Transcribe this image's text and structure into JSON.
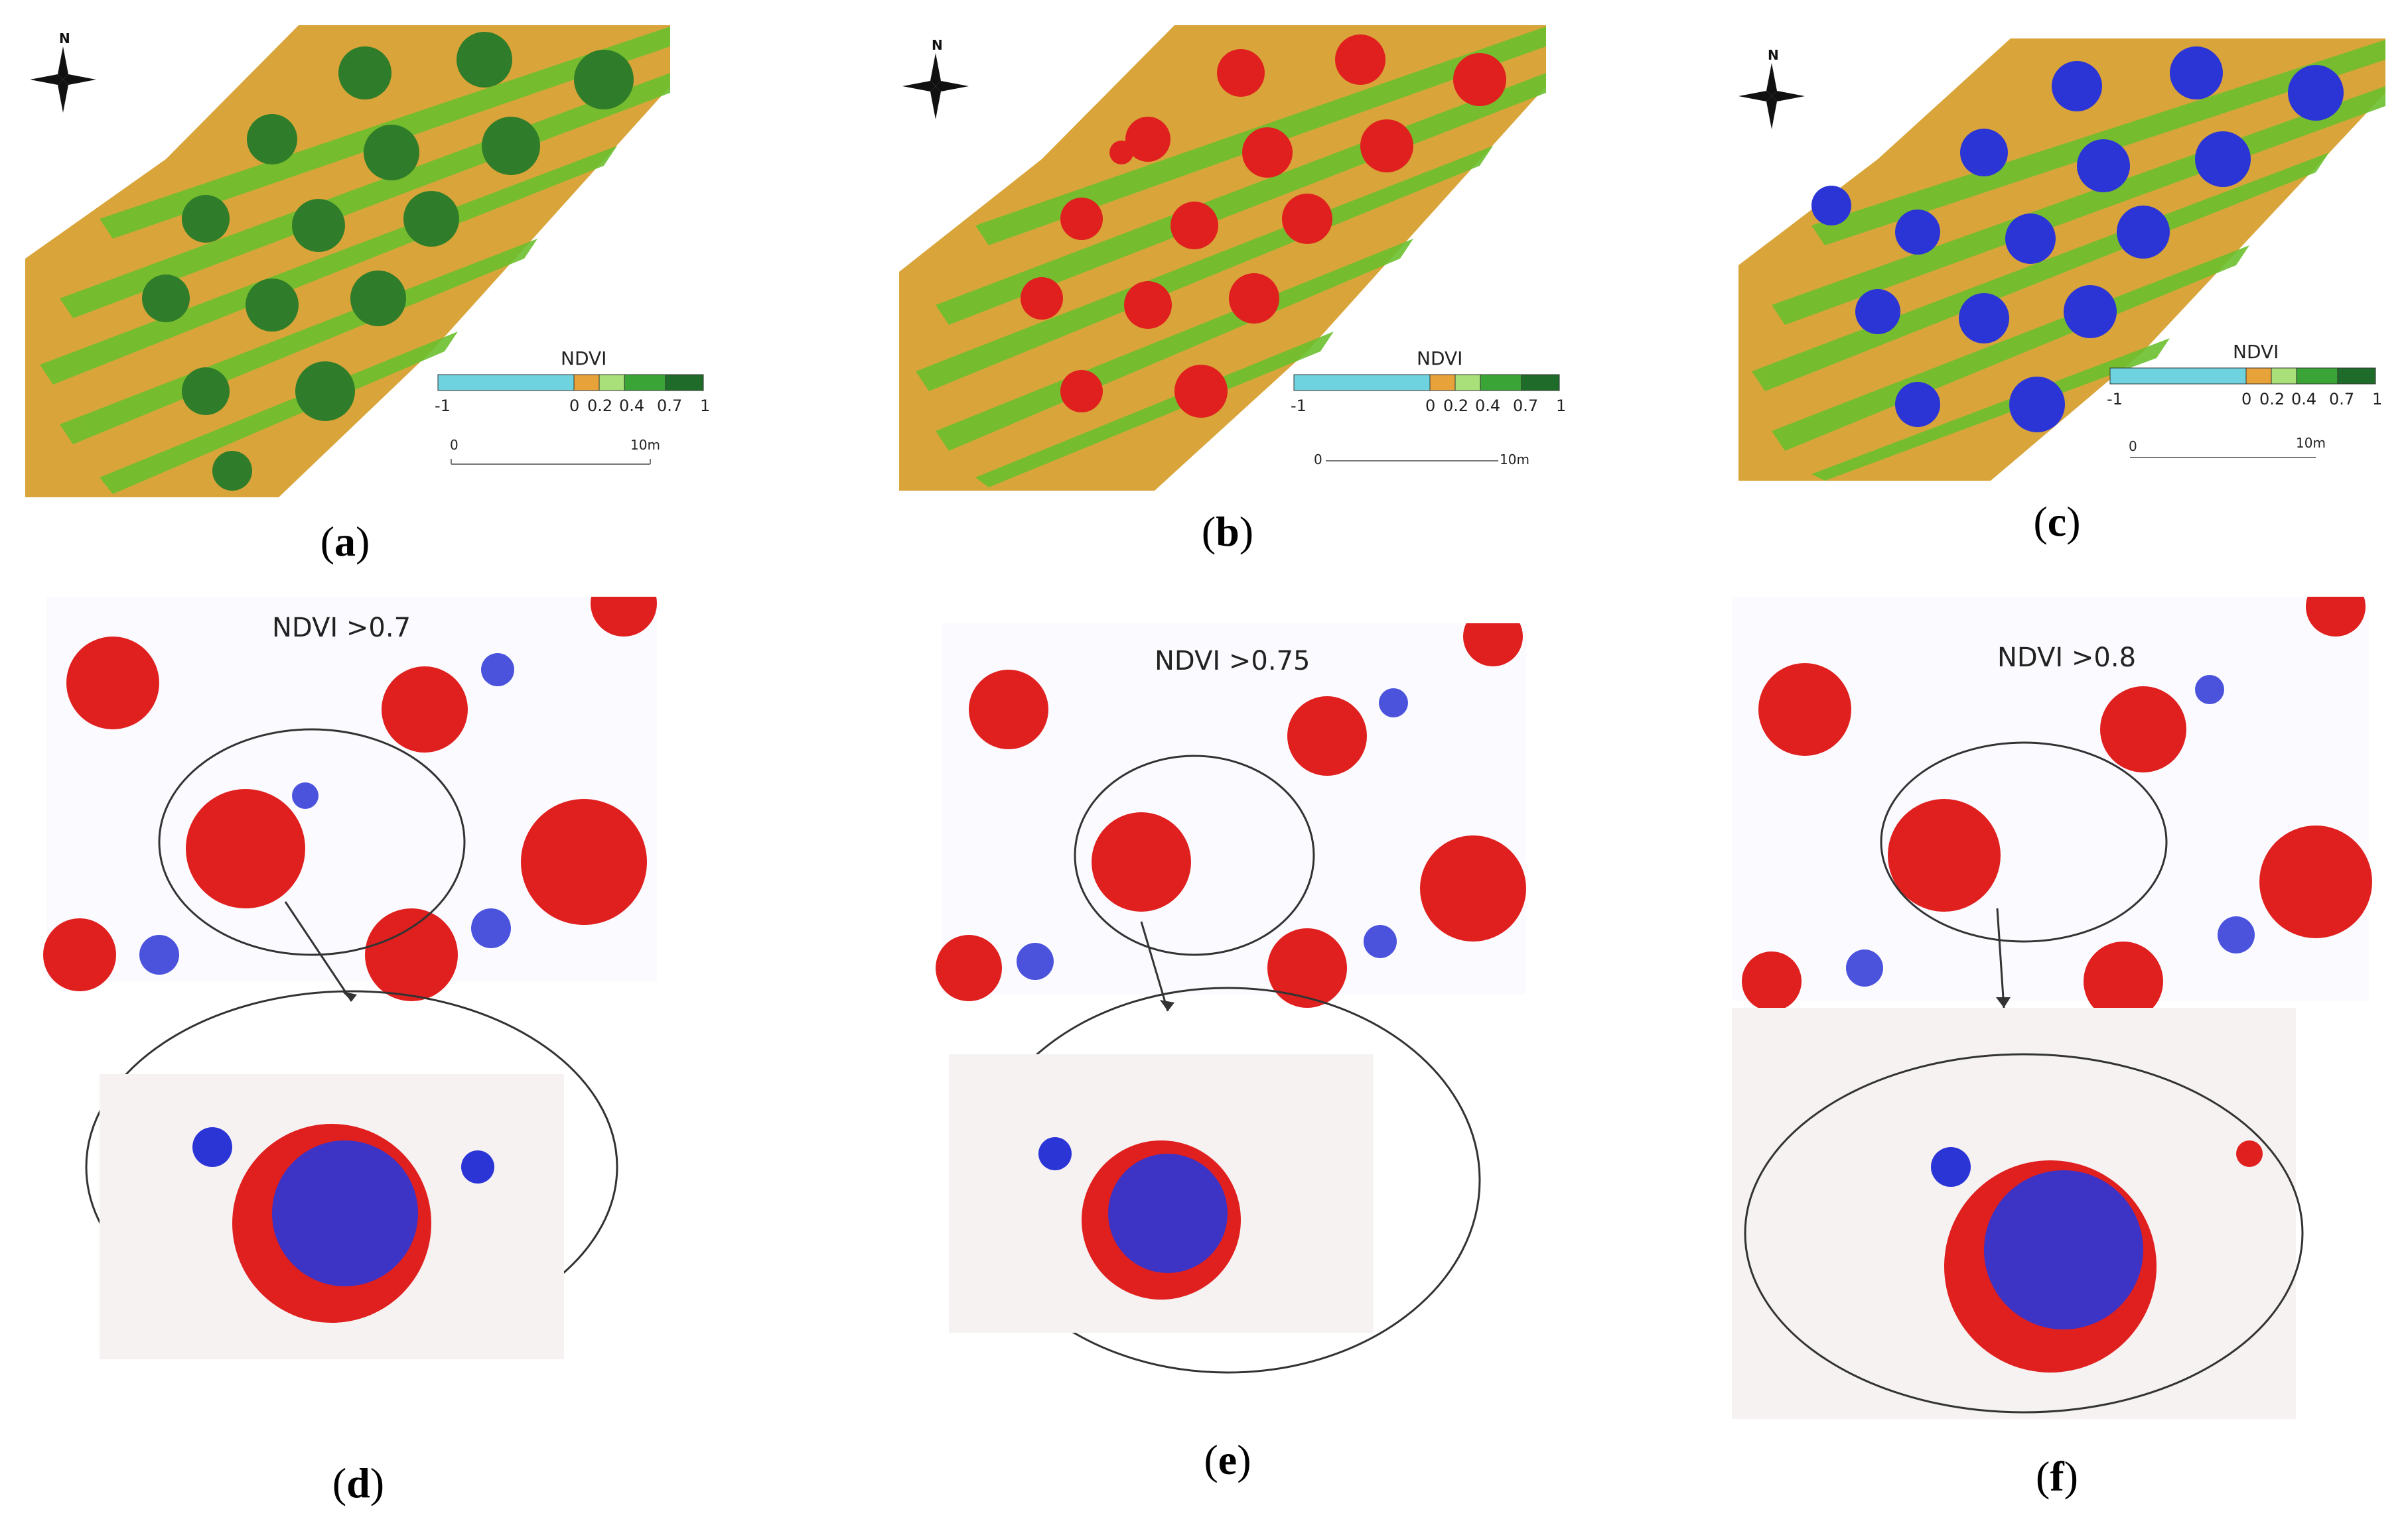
{
  "figure": {
    "panels": [
      {
        "id": "a",
        "caption": "a",
        "overlay": "none"
      },
      {
        "id": "b",
        "caption": "b",
        "overlay": "red"
      },
      {
        "id": "c",
        "caption": "c",
        "overlay": "blue"
      },
      {
        "id": "d",
        "caption": "d",
        "threshold_label": "NDVI >0.7"
      },
      {
        "id": "e",
        "caption": "e",
        "threshold_label": "NDVI >0.75"
      },
      {
        "id": "f",
        "caption": "f",
        "threshold_label": "NDVI >0.8"
      }
    ]
  },
  "legend": {
    "title": "NDVI",
    "ticks": [
      "-1",
      "0",
      "0.2",
      "0.4",
      "0.7",
      "1"
    ],
    "colors": [
      "#6fd3df",
      "#e8a23a",
      "#a9e07a",
      "#3aa536",
      "#1e6b2a"
    ]
  },
  "scale_bar": {
    "start": "0",
    "end": "10m"
  },
  "compass": {
    "north_label": "N"
  },
  "colors": {
    "soil": "#d9a53a",
    "grass": "#6cbf2e",
    "canopy": "#2f7d2a",
    "red": "#e0201f",
    "blue": "#2b35d6"
  }
}
